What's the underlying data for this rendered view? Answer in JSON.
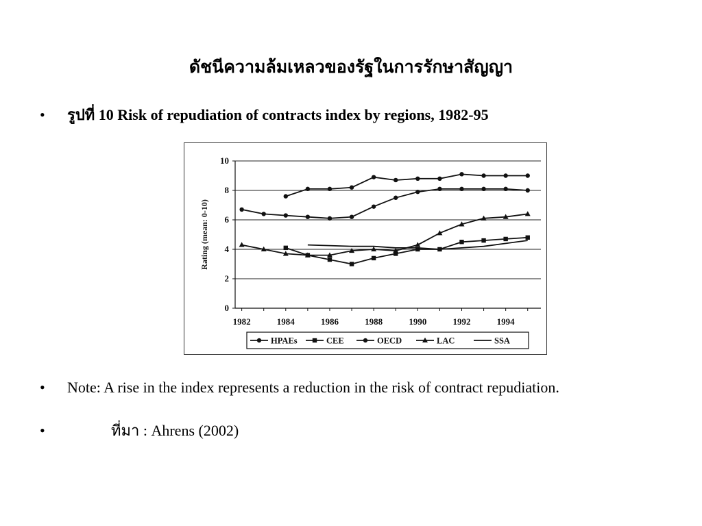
{
  "slide": {
    "title": "ดัชนีความล้มเหลวของรัฐในการรักษาสัญญา",
    "caption_thai": "รูปที่",
    "caption_text": " 10 Risk of repudiation of contracts index by regions, 1982-95",
    "note": "Note: A rise in the index represents a reduction in the risk of contract repudiation.",
    "source_thai": "ที่มา",
    "source_text": " : Ahrens (2002)",
    "bullet": "•"
  },
  "chart_data": {
    "type": "line",
    "title": "",
    "xlabel": "",
    "ylabel": "Rating (mean: 0-10)",
    "xlim": [
      1981.7,
      1995.6
    ],
    "ylim": [
      0,
      10
    ],
    "xticks": [
      1982,
      1984,
      1986,
      1988,
      1990,
      1992,
      1994
    ],
    "yticks": [
      0,
      2,
      4,
      6,
      8,
      10
    ],
    "grid": "horizontal",
    "legend_position": "bottom",
    "series": [
      {
        "name": "HPAEs",
        "marker": "circle",
        "x": [
          1984,
          1985,
          1986,
          1987,
          1988,
          1989,
          1990,
          1991,
          1992,
          1993,
          1994,
          1995
        ],
        "y": [
          7.6,
          8.1,
          8.1,
          8.2,
          8.9,
          8.7,
          8.8,
          8.8,
          9.1,
          9.0,
          9.0,
          9.0
        ]
      },
      {
        "name": "CEE",
        "marker": "square",
        "x": [
          1984,
          1985,
          1986,
          1987,
          1988,
          1989,
          1990,
          1991,
          1992,
          1993,
          1994,
          1995
        ],
        "y": [
          4.1,
          3.6,
          3.3,
          3.0,
          3.4,
          3.7,
          4.0,
          4.0,
          4.5,
          4.6,
          4.7,
          4.8
        ]
      },
      {
        "name": "OECD",
        "marker": "circle",
        "x": [
          1982,
          1983,
          1984,
          1985,
          1986,
          1987,
          1988,
          1989,
          1990,
          1991,
          1992,
          1993,
          1994,
          1995
        ],
        "y": [
          6.7,
          6.4,
          6.3,
          6.2,
          6.1,
          6.2,
          6.9,
          7.5,
          7.9,
          8.1,
          8.1,
          8.1,
          8.1,
          8.0
        ]
      },
      {
        "name": "LAC",
        "marker": "triangle",
        "x": [
          1982,
          1983,
          1984,
          1985,
          1986,
          1987,
          1988,
          1989,
          1990,
          1991,
          1992,
          1993,
          1994,
          1995
        ],
        "y": [
          4.3,
          4.0,
          3.7,
          3.6,
          3.6,
          3.9,
          4.0,
          3.9,
          4.3,
          5.1,
          5.7,
          6.1,
          6.2,
          6.4
        ]
      },
      {
        "name": "SSA",
        "marker": "none",
        "x": [
          1985,
          1986,
          1987,
          1988,
          1989,
          1990,
          1991,
          1992,
          1993,
          1994,
          1995
        ],
        "y": [
          4.3,
          4.25,
          4.2,
          4.2,
          4.1,
          4.1,
          4.0,
          4.1,
          4.2,
          4.4,
          4.6
        ]
      }
    ]
  },
  "colors": {
    "line": "#111111",
    "grid": "#222222",
    "frame": "#333333"
  }
}
